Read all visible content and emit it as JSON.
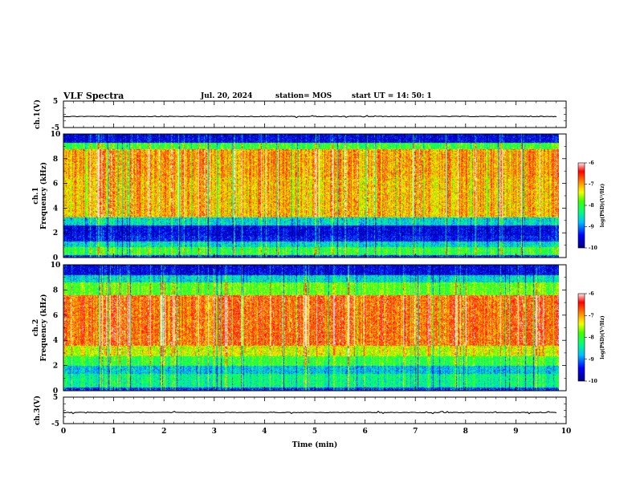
{
  "header": {
    "title": "VLF Spectra",
    "date": "Jul. 20, 2024",
    "station": "station= MOS",
    "start": "start UT =  14: 50: 1"
  },
  "chart_data": [
    {
      "type": "line",
      "panel": "ch1-waveform",
      "ylabel": "ch.1(V)",
      "ylim": [
        -5,
        5
      ],
      "yticks": [
        "5",
        "-5"
      ],
      "x": [
        0,
        10
      ],
      "series": [
        {
          "values": [
            -0.8,
            -0.8
          ]
        }
      ]
    },
    {
      "type": "heatmap",
      "panel": "ch1-spectrogram",
      "ylabel": "ch.1 Frequency (kHz)",
      "ylim": [
        0,
        10
      ],
      "yticks": [
        "0",
        "2",
        "4",
        "6",
        "8",
        "10"
      ],
      "xlim": [
        0,
        9.85
      ],
      "colorbar": {
        "label": "log(PSD)(V²/Hz)",
        "range": [
          -10,
          -6
        ],
        "ticks": [
          "-6",
          "-7",
          "-8",
          "-9",
          "-10"
        ]
      },
      "bands": [
        {
          "from": 0.0,
          "to": 0.25,
          "level": 0.2
        },
        {
          "from": 0.25,
          "to": 0.9,
          "level": 0.5
        },
        {
          "from": 0.9,
          "to": 1.3,
          "level": 0.35
        },
        {
          "from": 1.3,
          "to": 1.8,
          "level": 0.15
        },
        {
          "from": 1.8,
          "to": 2.6,
          "level": 0.12
        },
        {
          "from": 2.6,
          "to": 3.3,
          "level": 0.35
        },
        {
          "from": 3.3,
          "to": 6.5,
          "level": 0.72
        },
        {
          "from": 6.5,
          "to": 8.8,
          "level": 0.75
        },
        {
          "from": 8.8,
          "to": 9.3,
          "level": 0.5
        },
        {
          "from": 9.3,
          "to": 10.0,
          "level": 0.12
        }
      ]
    },
    {
      "type": "heatmap",
      "panel": "ch2-spectrogram",
      "ylabel": "ch.2 Frequency (kHz)",
      "ylim": [
        0,
        10
      ],
      "yticks": [
        "0",
        "2",
        "4",
        "6",
        "8",
        "10"
      ],
      "xlim": [
        0,
        9.85
      ],
      "colorbar": {
        "label": "log(PSD)(V²/Hz)",
        "range": [
          -10,
          -6
        ],
        "ticks": [
          "-6",
          "-7",
          "-8",
          "-9",
          "-10"
        ]
      },
      "bands": [
        {
          "from": 0.0,
          "to": 0.3,
          "level": 0.2
        },
        {
          "from": 0.3,
          "to": 1.4,
          "level": 0.42
        },
        {
          "from": 1.4,
          "to": 2.0,
          "level": 0.32
        },
        {
          "from": 2.0,
          "to": 2.8,
          "level": 0.5
        },
        {
          "from": 2.8,
          "to": 3.6,
          "level": 0.65
        },
        {
          "from": 3.6,
          "to": 7.6,
          "level": 0.82
        },
        {
          "from": 7.6,
          "to": 8.6,
          "level": 0.55
        },
        {
          "from": 8.6,
          "to": 9.2,
          "level": 0.35
        },
        {
          "from": 9.2,
          "to": 10.0,
          "level": 0.12
        }
      ]
    },
    {
      "type": "line",
      "panel": "ch3-waveform",
      "ylabel": "ch.3(V)",
      "ylim": [
        -5,
        5
      ],
      "yticks": [
        "5",
        "-5"
      ],
      "x": [
        0,
        10
      ],
      "series": [
        {
          "values": [
            -0.8,
            -0.8
          ]
        }
      ]
    }
  ],
  "xaxis": {
    "label": "Time  (min)",
    "xlim": [
      0,
      10
    ],
    "ticks": [
      "0",
      "1",
      "2",
      "3",
      "4",
      "5",
      "6",
      "7",
      "8",
      "9",
      "10"
    ]
  },
  "colors": {
    "scale": [
      "#000080",
      "#0000ff",
      "#00c0ff",
      "#00ff80",
      "#40ff00",
      "#ffff00",
      "#ff8000",
      "#ff0000",
      "#ffffff"
    ]
  }
}
